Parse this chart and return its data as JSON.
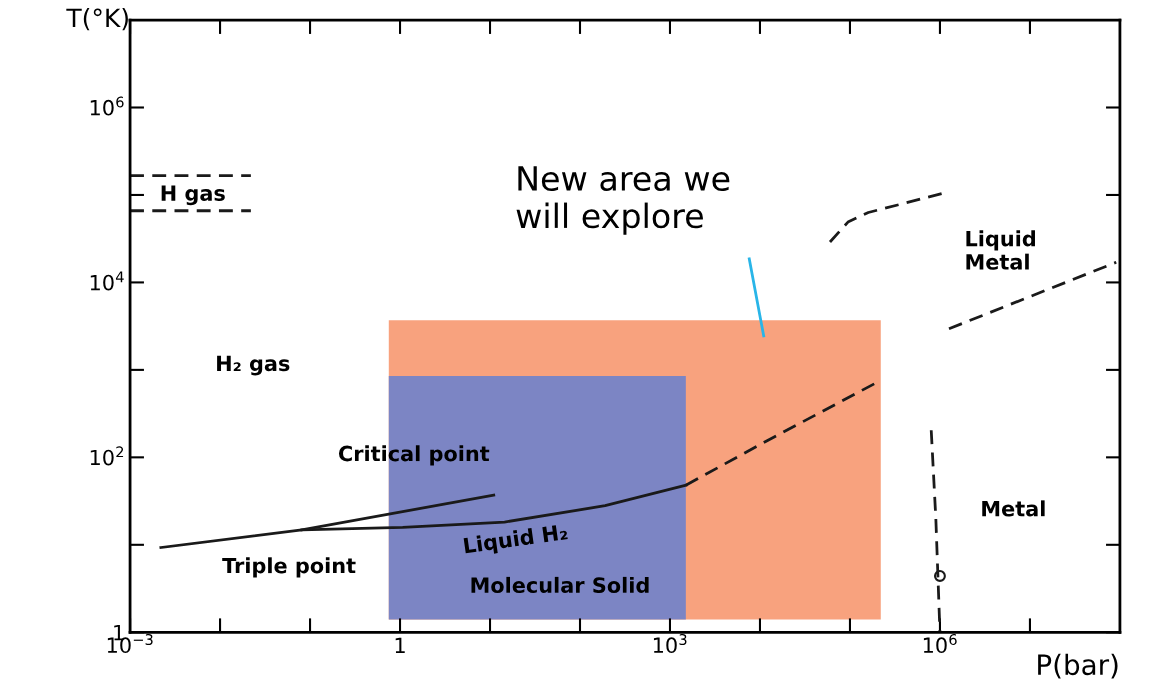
{
  "chart_data": {
    "type": "line",
    "xlabel": "P(bar)",
    "ylabel": "T(°K)",
    "log": "xy",
    "xlim": [
      0.001,
      100000000
    ],
    "ylim": [
      1,
      10000000
    ],
    "xticks": [
      {
        "value": 0.001,
        "label": "10$^{−3}$"
      },
      {
        "value": 0.01,
        "label": null
      },
      {
        "value": 0.1,
        "label": null
      },
      {
        "value": 1,
        "label": "1"
      },
      {
        "value": 10,
        "label": null
      },
      {
        "value": 100,
        "label": null
      },
      {
        "value": 1000,
        "label": "10$^{3}$"
      },
      {
        "value": 10000,
        "label": null
      },
      {
        "value": 100000,
        "label": null
      },
      {
        "value": 1000000,
        "label": "10$^{6}$"
      },
      {
        "value": 10000000,
        "label": null
      }
    ],
    "yticks": [
      {
        "value": 1,
        "label": "1"
      },
      {
        "value": 10,
        "label": null
      },
      {
        "value": 100,
        "label": "10$^{2}$"
      },
      {
        "value": 1000,
        "label": null
      },
      {
        "value": 10000,
        "label": "10$^{4}$"
      },
      {
        "value": 100000,
        "label": null
      },
      {
        "value": 1000000,
        "label": "10$^{6}$"
      }
    ],
    "grid": false,
    "legend": false,
    "series": [
      {
        "type": "area",
        "color": "#f8a27e",
        "x": [
          0.75,
          0.75,
          220000,
          220000
        ],
        "values": [
          1.4,
          3700,
          3700,
          1.4
        ]
      },
      {
        "type": "area",
        "color": "#7c85c4",
        "x": [
          0.75,
          0.75,
          1500,
          1500
        ],
        "values": [
          1.4,
          850,
          850,
          1.4
        ]
      },
      {
        "color": "#1a1a1a",
        "line_style": "solid",
        "x": [
          0.0022,
          0.081,
          1.07,
          14.5,
          190,
          1500
        ],
        "values": [
          9.3,
          14.8,
          15.8,
          18.2,
          28,
          48
        ]
      },
      {
        "color": "#1a1a1a",
        "line_style": "dashed",
        "x": [
          1500,
          12000,
          200000
        ],
        "values": [
          48,
          155,
          720
        ]
      },
      {
        "color": "#1a1a1a",
        "line_style": "solid",
        "x": [
          0.081,
          11
        ],
        "values": [
          14.8,
          37
        ]
      },
      {
        "color": "#1a1a1a",
        "line_style": "dashed",
        "x": [
          60000,
          95000,
          160000,
          1100000
        ],
        "values": [
          29000,
          49000,
          63000,
          105000
        ]
      },
      {
        "color": "#1a1a1a",
        "line_style": "dashed",
        "x": [
          1260000,
          91000000
        ],
        "values": [
          2950,
          17000
        ]
      },
      {
        "color": "#1a1a1a",
        "line_style": "dashed",
        "x": [
          800000,
          900000,
          1000000
        ],
        "values": [
          204,
          20,
          1
        ]
      },
      {
        "color": "#1a1a1a",
        "line_style": "dashed",
        "x": [
          0.001,
          0.022
        ],
        "values": [
          166000,
          166000
        ]
      },
      {
        "color": "#1a1a1a",
        "line_style": "dashed",
        "x": [
          0.001,
          0.022
        ],
        "values": [
          66000,
          66000
        ]
      },
      {
        "type": "scatter",
        "color": "#1a1a1a",
        "marker": "circle",
        "x": [
          1000000
        ],
        "values": [
          4.4
        ]
      },
      {
        "color": "#29b5e8",
        "line_style": "solid",
        "x": [
          7600,
          11000
        ],
        "values": [
          18600,
          2450
        ]
      }
    ],
    "annotations": [
      "H gas",
      "H₂ gas",
      "Critical point",
      "Liquid H₂",
      "Triple point",
      "Molecular Solid",
      "Metal",
      "Liquid\nMetal",
      "New area we\nwill explore"
    ]
  }
}
